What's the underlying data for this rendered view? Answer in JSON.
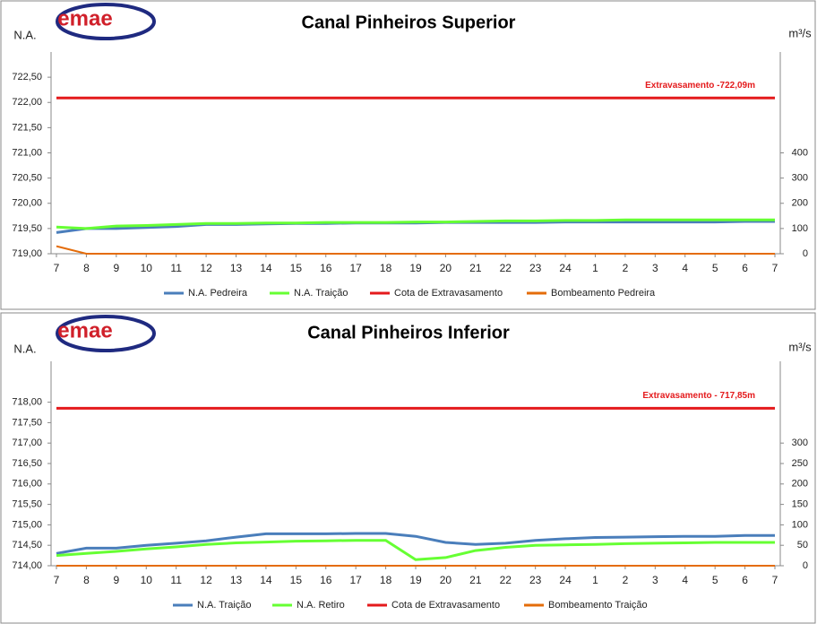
{
  "chart_data": [
    {
      "type": "line",
      "title": "Canal Pinheiros Superior",
      "logo": "emae",
      "y_label": "N.A.",
      "y2_label": "m³/s",
      "annotation": "Extravasamento -722,09m",
      "categories": [
        "7",
        "8",
        "9",
        "10",
        "11",
        "12",
        "13",
        "14",
        "15",
        "16",
        "17",
        "18",
        "19",
        "20",
        "21",
        "22",
        "23",
        "24",
        "1",
        "2",
        "3",
        "4",
        "5",
        "6",
        "7"
      ],
      "series": [
        {
          "name": "N.A. Pedreira",
          "color": "#4a7ebb",
          "values": [
            719.42,
            719.5,
            719.5,
            719.52,
            719.54,
            719.58,
            719.58,
            719.59,
            719.6,
            719.6,
            719.61,
            719.61,
            719.61,
            719.62,
            719.62,
            719.62,
            719.62,
            719.63,
            719.63,
            719.63,
            719.63,
            719.63,
            719.63,
            719.64,
            719.64
          ]
        },
        {
          "name": "N.A. Traição",
          "color": "#66ff33",
          "values": [
            719.53,
            719.5,
            719.55,
            719.56,
            719.58,
            719.6,
            719.6,
            719.61,
            719.61,
            719.62,
            719.62,
            719.62,
            719.63,
            719.63,
            719.64,
            719.65,
            719.65,
            719.66,
            719.66,
            719.67,
            719.67,
            719.67,
            719.67,
            719.67,
            719.67
          ]
        },
        {
          "name": "Cota de Extravasamento",
          "color": "#e41a1c",
          "values": [
            722.09,
            722.09,
            722.09,
            722.09,
            722.09,
            722.09,
            722.09,
            722.09,
            722.09,
            722.09,
            722.09,
            722.09,
            722.09,
            722.09,
            722.09,
            722.09,
            722.09,
            722.09,
            722.09,
            722.09,
            722.09,
            722.09,
            722.09,
            722.09,
            722.09
          ]
        },
        {
          "name": "Bombeamento Pedreira",
          "color": "#e46c0a",
          "axis": "y2",
          "values": [
            30,
            0,
            0,
            0,
            0,
            0,
            0,
            0,
            0,
            0,
            0,
            0,
            0,
            0,
            0,
            0,
            0,
            0,
            0,
            0,
            0,
            0,
            0,
            0,
            0
          ]
        }
      ],
      "ylim": [
        719,
        723
      ],
      "yticks": [
        {
          "value": 719,
          "label": "719,00"
        },
        {
          "value": 719.5,
          "label": "719,50"
        },
        {
          "value": 720,
          "label": "720,00"
        },
        {
          "value": 720.5,
          "label": "720,50"
        },
        {
          "value": 721,
          "label": "721,00"
        },
        {
          "value": 721.5,
          "label": "721,50"
        },
        {
          "value": 722,
          "label": "722,00"
        },
        {
          "value": 722.5,
          "label": "722,50"
        }
      ],
      "y2lim": [
        0,
        800
      ],
      "y2ticks": [
        0,
        100,
        200,
        300,
        400
      ],
      "legend": "bottom",
      "grid": false
    },
    {
      "type": "line",
      "title": "Canal Pinheiros Inferior",
      "logo": "emae",
      "y_label": "N.A.",
      "y2_label": "m³/s",
      "annotation": "Extravasamento - 717,85m",
      "categories": [
        "7",
        "8",
        "9",
        "10",
        "11",
        "12",
        "13",
        "14",
        "15",
        "16",
        "17",
        "18",
        "19",
        "20",
        "21",
        "22",
        "23",
        "24",
        "1",
        "2",
        "3",
        "4",
        "5",
        "6",
        "7"
      ],
      "series": [
        {
          "name": "N.A. Traição",
          "color": "#4a7ebb",
          "values": [
            714.3,
            714.43,
            714.43,
            714.5,
            714.55,
            714.61,
            714.7,
            714.78,
            714.78,
            714.78,
            714.79,
            714.79,
            714.72,
            714.57,
            714.52,
            714.55,
            714.62,
            714.66,
            714.69,
            714.7,
            714.71,
            714.72,
            714.72,
            714.74,
            714.74
          ]
        },
        {
          "name": "N.A. Retiro",
          "color": "#66ff33",
          "values": [
            714.25,
            714.3,
            714.35,
            714.41,
            714.46,
            714.52,
            714.56,
            714.58,
            714.6,
            714.61,
            714.62,
            714.62,
            714.15,
            714.2,
            714.37,
            714.45,
            714.5,
            714.51,
            714.52,
            714.54,
            714.55,
            714.56,
            714.57,
            714.57,
            714.57
          ]
        },
        {
          "name": "Cota de Extravasamento",
          "color": "#e41a1c",
          "values": [
            717.85,
            717.85,
            717.85,
            717.85,
            717.85,
            717.85,
            717.85,
            717.85,
            717.85,
            717.85,
            717.85,
            717.85,
            717.85,
            717.85,
            717.85,
            717.85,
            717.85,
            717.85,
            717.85,
            717.85,
            717.85,
            717.85,
            717.85,
            717.85,
            717.85
          ]
        },
        {
          "name": "Bombeamento Traição",
          "color": "#e46c0a",
          "axis": "y2",
          "values": [
            0,
            0,
            0,
            0,
            0,
            0,
            0,
            0,
            0,
            0,
            0,
            0,
            0,
            0,
            0,
            0,
            0,
            0,
            0,
            0,
            0,
            0,
            0,
            0,
            0
          ]
        }
      ],
      "ylim": [
        714,
        719
      ],
      "yticks": [
        {
          "value": 714,
          "label": "714,00"
        },
        {
          "value": 714.5,
          "label": "714,50"
        },
        {
          "value": 715,
          "label": "715,00"
        },
        {
          "value": 715.5,
          "label": "715,50"
        },
        {
          "value": 716,
          "label": "716,00"
        },
        {
          "value": 716.5,
          "label": "716,50"
        },
        {
          "value": 717,
          "label": "717,00"
        },
        {
          "value": 717.5,
          "label": "717,50"
        },
        {
          "value": 718,
          "label": "718,00"
        }
      ],
      "y2lim": [
        0,
        500
      ],
      "y2ticks": [
        0,
        50,
        100,
        150,
        200,
        250,
        300
      ],
      "legend": "bottom",
      "grid": false
    }
  ]
}
